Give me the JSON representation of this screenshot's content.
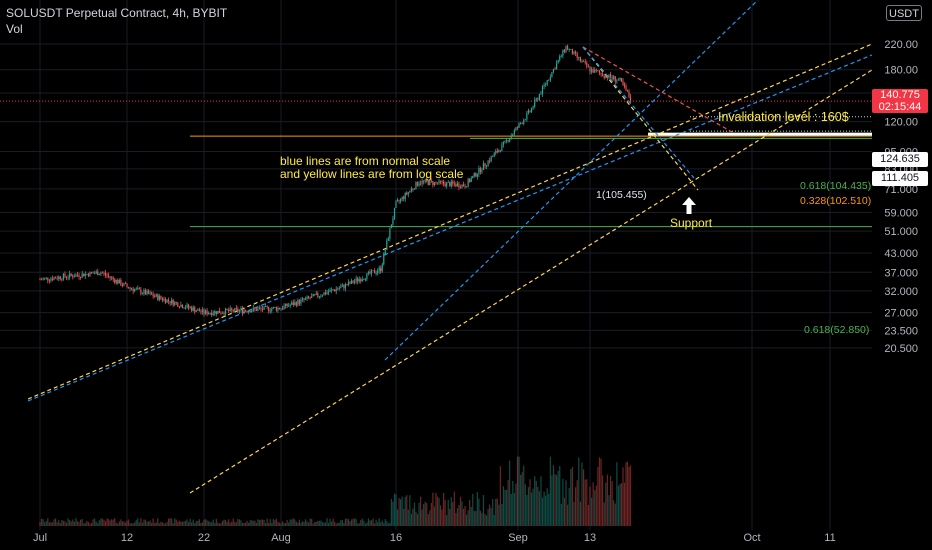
{
  "header": {
    "title": "SOLUSDT Perpetual Contract, 4h, BYBIT",
    "indicator": "Vol"
  },
  "currency_button": "USDT",
  "price_tags": {
    "last_price": "140.775",
    "countdown": "02:15:44",
    "level_a": "124.635",
    "level_b": "111.405"
  },
  "fib_labels": {
    "fib_1": "1(105.455)",
    "fib_0618_top": "0.618(104.435)",
    "fib_0328": "0.328(102.510)",
    "fib_0618_low": "0.618(52.850)"
  },
  "annotations": {
    "invalidation": "Invalidation level : 160$",
    "note_line1": "blue lines are from normal scale",
    "note_line2": "and yellow lines are from log scale",
    "support": "Support"
  },
  "colors": {
    "up": "#26a69a",
    "down": "#ef5350",
    "blue_trend": "#2196f3",
    "yellow_trend": "#ffd54f",
    "fib_green": "#4caf50",
    "fib_orange": "#ff9800",
    "annotation": "#ffeb3b",
    "price_tag": "#f23645"
  },
  "chart_data": {
    "type": "candlestick",
    "scale": "log",
    "y_axis_ticks": [
      "220.00",
      "180.00",
      "150.00",
      "120.00",
      "95.000",
      "83.000",
      "71.000",
      "59.000",
      "51.000",
      "43.000",
      "37.000",
      "32.000",
      "27.000",
      "23.500",
      "20.500"
    ],
    "x_axis_ticks": [
      "Jul",
      "12",
      "22",
      "Aug",
      "16",
      "Sep",
      "13",
      "Oct",
      "11"
    ],
    "price_path": [
      {
        "date": "Jul",
        "close": 35
      },
      {
        "date": "Jul 8",
        "close": 37
      },
      {
        "date": "12",
        "close": 33
      },
      {
        "date": "17",
        "close": 31
      },
      {
        "date": "20",
        "close": 23
      },
      {
        "date": "22",
        "close": 27
      },
      {
        "date": "Aug",
        "close": 28
      },
      {
        "date": "Aug 9",
        "close": 33
      },
      {
        "date": "Aug 14",
        "close": 38
      },
      {
        "date": "16",
        "close": 63
      },
      {
        "date": "Aug 19",
        "close": 75
      },
      {
        "date": "Aug 25",
        "close": 73
      },
      {
        "date": "Aug 30",
        "close": 100
      },
      {
        "date": "Sep 3",
        "close": 130
      },
      {
        "date": "Sep 9",
        "close": 215
      },
      {
        "date": "Sep 13",
        "close": 180
      },
      {
        "date": "Sep 18",
        "close": 165
      },
      {
        "date": "Sep 20",
        "close": 140.775
      }
    ],
    "levels": [
      {
        "label": "1(105.455)",
        "value": 105.455
      },
      {
        "label": "0.618(104.435)",
        "value": 104.435
      },
      {
        "label": "0.328(102.510)",
        "value": 102.51
      },
      {
        "label": "0.618(52.850)",
        "value": 52.85
      },
      {
        "label": "124.635",
        "value": 124.635
      },
      {
        "label": "111.405",
        "value": 111.405
      }
    ],
    "invalidation_level": 160,
    "last_price": 140.775
  }
}
